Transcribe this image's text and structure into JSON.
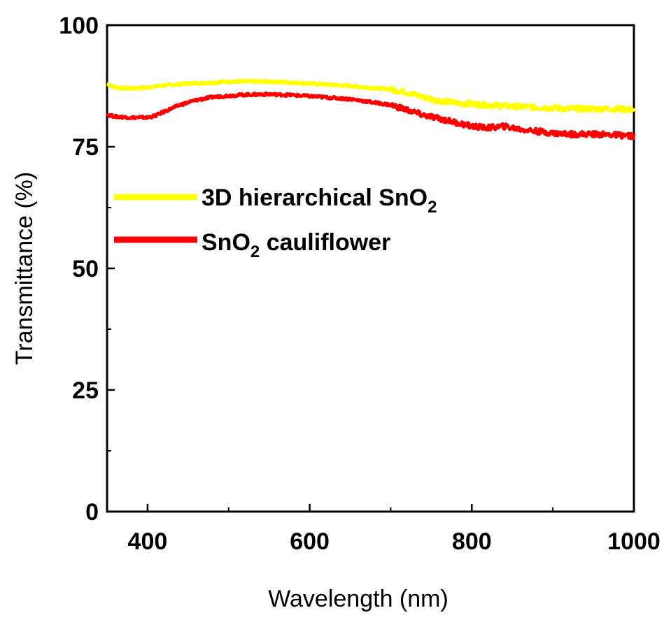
{
  "chart_data": {
    "type": "line",
    "xlabel": "Wavelength (nm)",
    "ylabel": "Transmittance (%)",
    "xlim": [
      350,
      1000
    ],
    "ylim": [
      0,
      100
    ],
    "x_ticks": [
      400,
      600,
      800,
      1000
    ],
    "y_ticks": [
      0,
      25,
      50,
      75,
      100
    ],
    "grid": false,
    "legend_position": "upper-left",
    "series": [
      {
        "name": "3D hierarchical SnO2",
        "label_main": "3D hierarchical SnO",
        "label_sub": "2",
        "color": "#ffff00",
        "x": [
          350,
          360,
          380,
          400,
          420,
          450,
          480,
          500,
          520,
          550,
          580,
          600,
          650,
          700,
          720,
          740,
          760,
          780,
          800,
          820,
          850,
          880,
          900,
          920,
          950,
          980,
          1000
        ],
        "y": [
          88.0,
          87.2,
          87.0,
          87.2,
          87.6,
          88.0,
          88.2,
          88.4,
          88.4,
          88.4,
          88.2,
          88.0,
          87.5,
          86.8,
          86.2,
          85.2,
          84.5,
          84.0,
          83.8,
          83.6,
          83.3,
          83.1,
          83.0,
          82.8,
          82.8,
          82.8,
          82.6
        ]
      },
      {
        "name": "SnO2 cauliflower",
        "label_main": "SnO",
        "label_sub": "2",
        "label_rest": " cauliflower",
        "color": "#ff0000",
        "x": [
          350,
          360,
          380,
          400,
          410,
          420,
          440,
          460,
          480,
          500,
          520,
          550,
          580,
          600,
          650,
          700,
          720,
          740,
          760,
          780,
          800,
          820,
          840,
          860,
          880,
          900,
          920,
          950,
          980,
          1000
        ],
        "y": [
          81.6,
          81.2,
          81.0,
          81.0,
          81.4,
          82.2,
          83.6,
          84.6,
          85.2,
          85.5,
          85.7,
          85.8,
          85.6,
          85.4,
          84.8,
          83.6,
          82.6,
          81.5,
          80.8,
          80.0,
          79.2,
          78.9,
          79.2,
          78.6,
          78.2,
          77.8,
          77.6,
          77.6,
          77.4,
          77.2
        ]
      }
    ]
  }
}
